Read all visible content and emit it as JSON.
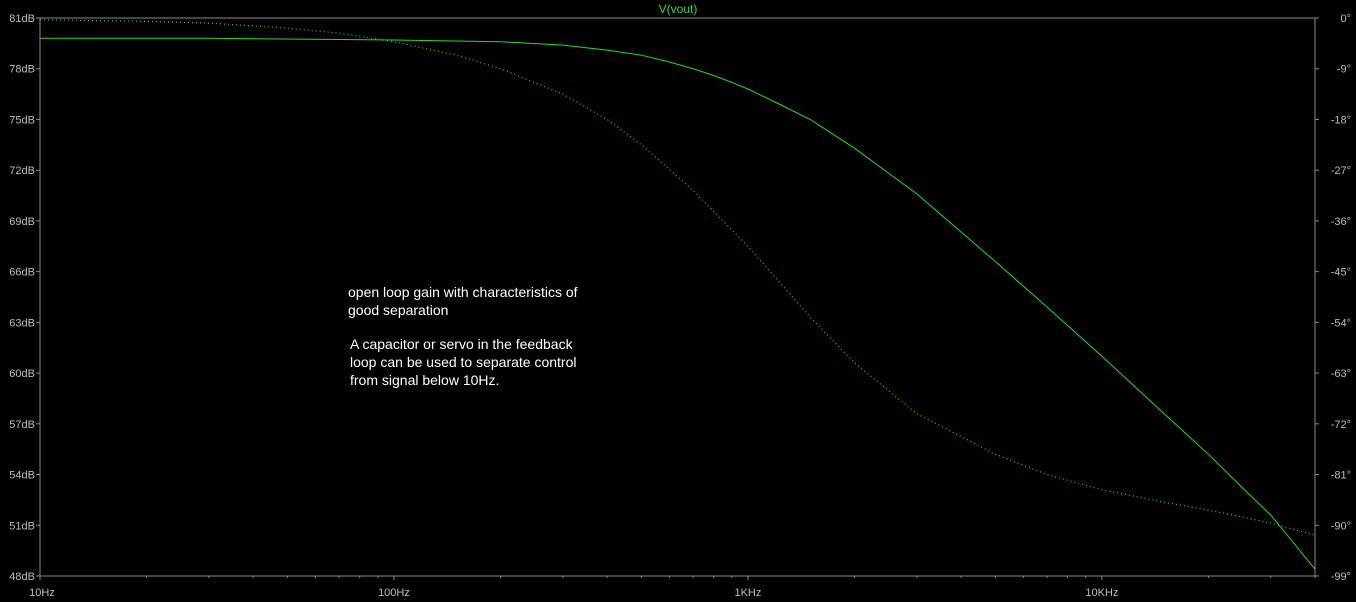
{
  "chart_data": {
    "type": "line",
    "title": "V(vout)",
    "x_scale": "log",
    "xlim_hz": [
      10,
      40000
    ],
    "ylim_db": [
      48,
      81
    ],
    "ylim_phase_deg": [
      -99,
      0
    ],
    "x_ticks": [
      {
        "value": 10,
        "label": "10Hz"
      },
      {
        "value": 100,
        "label": "100Hz"
      },
      {
        "value": 1000,
        "label": "1KHz"
      },
      {
        "value": 10000,
        "label": "10KHz"
      }
    ],
    "y_left_ticks": [
      {
        "value": 81,
        "label": "81dB"
      },
      {
        "value": 78,
        "label": "78dB"
      },
      {
        "value": 75,
        "label": "75dB"
      },
      {
        "value": 72,
        "label": "72dB"
      },
      {
        "value": 69,
        "label": "69dB"
      },
      {
        "value": 66,
        "label": "66dB"
      },
      {
        "value": 63,
        "label": "63dB"
      },
      {
        "value": 60,
        "label": "60dB"
      },
      {
        "value": 57,
        "label": "57dB"
      },
      {
        "value": 54,
        "label": "54dB"
      },
      {
        "value": 51,
        "label": "51dB"
      },
      {
        "value": 48,
        "label": "48dB"
      }
    ],
    "y_right_ticks": [
      {
        "value": 0,
        "label": "0°"
      },
      {
        "value": -9,
        "label": "-9°"
      },
      {
        "value": -18,
        "label": "-18°"
      },
      {
        "value": -27,
        "label": "-27°"
      },
      {
        "value": -36,
        "label": "-36°"
      },
      {
        "value": -45,
        "label": "-45°"
      },
      {
        "value": -54,
        "label": "-54°"
      },
      {
        "value": -63,
        "label": "-63°"
      },
      {
        "value": -72,
        "label": "-72°"
      },
      {
        "value": -81,
        "label": "-81°"
      },
      {
        "value": -90,
        "label": "-90°"
      },
      {
        "value": -99,
        "label": "-99°"
      }
    ],
    "grid": false,
    "series": [
      {
        "axis": "left",
        "style": "solid",
        "color": "#22dd22",
        "points": [
          [
            10,
            79.8
          ],
          [
            30,
            79.8
          ],
          [
            100,
            79.7
          ],
          [
            200,
            79.6
          ],
          [
            300,
            79.4
          ],
          [
            400,
            79.1
          ],
          [
            500,
            78.8
          ],
          [
            600,
            78.4
          ],
          [
            700,
            78.0
          ],
          [
            800,
            77.6
          ],
          [
            900,
            77.2
          ],
          [
            1000,
            76.8
          ],
          [
            1200,
            76.0
          ],
          [
            1500,
            75.0
          ],
          [
            2000,
            73.3
          ],
          [
            3000,
            70.6
          ],
          [
            5000,
            66.6
          ],
          [
            7000,
            63.9
          ],
          [
            10000,
            61.0
          ],
          [
            15000,
            57.6
          ],
          [
            20000,
            55.2
          ],
          [
            25000,
            53.2
          ],
          [
            30000,
            51.6
          ],
          [
            40000,
            48.4
          ]
        ]
      },
      {
        "axis": "right",
        "style": "dotted",
        "color": "#22dd22",
        "points": [
          [
            10,
            -0.3
          ],
          [
            20,
            -0.6
          ],
          [
            30,
            -0.9
          ],
          [
            50,
            -1.8
          ],
          [
            70,
            -2.7
          ],
          [
            100,
            -4.2
          ],
          [
            150,
            -6.6
          ],
          [
            200,
            -9.0
          ],
          [
            300,
            -13.5
          ],
          [
            400,
            -18.0
          ],
          [
            500,
            -22.5
          ],
          [
            700,
            -30.6
          ],
          [
            1000,
            -40.5
          ],
          [
            1500,
            -53.1
          ],
          [
            2000,
            -61.2
          ],
          [
            3000,
            -70.2
          ],
          [
            5000,
            -77.4
          ],
          [
            7000,
            -81.0
          ],
          [
            10000,
            -83.7
          ],
          [
            15000,
            -85.9
          ],
          [
            20000,
            -87.3
          ],
          [
            30000,
            -89.6
          ],
          [
            40000,
            -91.8
          ]
        ]
      }
    ]
  },
  "annotations": {
    "text1": "open loop gain with characteristics of\ngood separation",
    "text2": "A capacitor or servo in the feedback\nloop can be used to separate control\nfrom signal below 10Hz."
  }
}
